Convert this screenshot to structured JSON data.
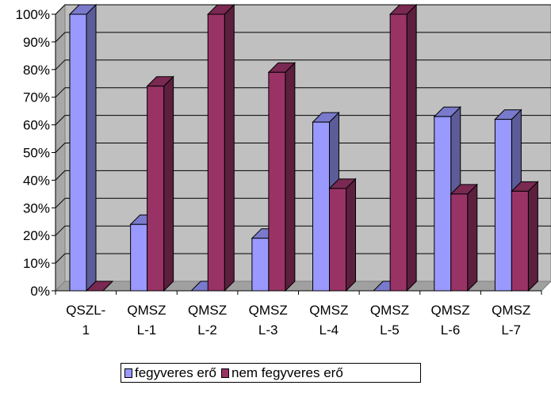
{
  "chart_data": {
    "type": "bar",
    "style": "3d-clustered-column",
    "categories": [
      "QSZL-\n1",
      "QMSZ\nL-1",
      "QMSZ\nL-2",
      "QMSZ\nL-3",
      "QMSZ\nL-4",
      "QMSZ\nL-5",
      "QMSZ\nL-6",
      "QMSZ\nL-7"
    ],
    "series": [
      {
        "name": "fegyveres erő",
        "color": "#9999ff",
        "values": [
          100,
          24,
          0,
          19,
          61,
          0,
          63,
          62
        ]
      },
      {
        "name": "nem fegyveres erő",
        "color": "#993366",
        "values": [
          0,
          74,
          100,
          79,
          37,
          100,
          35,
          36
        ]
      }
    ],
    "yticks": [
      "0%",
      "10%",
      "20%",
      "30%",
      "40%",
      "50%",
      "60%",
      "70%",
      "80%",
      "90%",
      "100%"
    ],
    "ylim": [
      0,
      100
    ],
    "grid": true,
    "plot_background": "#c0c0c0",
    "legend_position": "bottom"
  }
}
